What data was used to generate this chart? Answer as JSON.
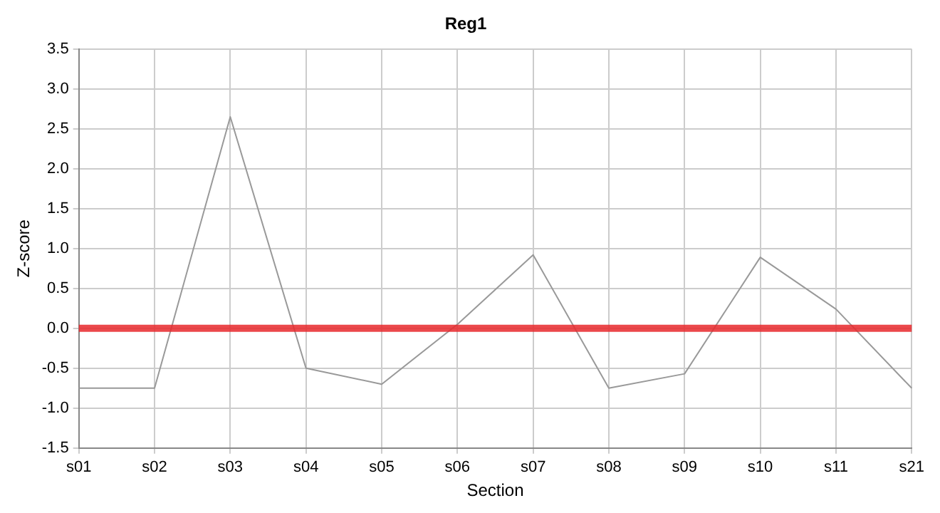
{
  "chart_data": {
    "type": "line",
    "title": "Reg1",
    "xlabel": "Section",
    "ylabel": "Z-score",
    "categories": [
      "s01",
      "s02",
      "s03",
      "s04",
      "s05",
      "s06",
      "s07",
      "s08",
      "s09",
      "s10",
      "s11",
      "s21"
    ],
    "series": [
      {
        "color": "#999999",
        "values": [
          -0.75,
          -0.75,
          2.65,
          -0.5,
          -0.7,
          0.05,
          0.92,
          -0.75,
          -0.57,
          0.89,
          0.24,
          -0.75
        ]
      }
    ],
    "ylim": [
      -1.5,
      3.5
    ],
    "yticks": [
      {
        "value": -1.5,
        "label": "-1.5"
      },
      {
        "value": -1,
        "label": "-1.0"
      },
      {
        "value": -0.5,
        "label": "-0.5"
      },
      {
        "value": 0,
        "label": "0.0"
      },
      {
        "value": 0.5,
        "label": "0.5"
      },
      {
        "value": 1,
        "label": "1.0"
      },
      {
        "value": 1.5,
        "label": "1.5"
      },
      {
        "value": 2,
        "label": "2.0"
      },
      {
        "value": 2.5,
        "label": "2.5"
      },
      {
        "value": 3,
        "label": "3.0"
      },
      {
        "value": 3.5,
        "label": "3.5"
      }
    ],
    "ref_lines": [
      {
        "axis": "y",
        "value": 0,
        "color": "#e8282b"
      }
    ],
    "grid": true,
    "legend": false,
    "marker": "none",
    "line_style": "solid"
  }
}
